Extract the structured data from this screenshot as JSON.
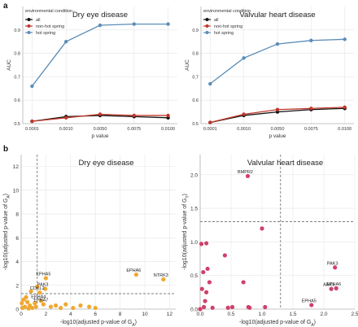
{
  "panels": {
    "a": "a",
    "b": "b"
  },
  "colors": {
    "all": "#111111",
    "non_hot_spring": "#c0392b",
    "hot_spring": "#5b8db8",
    "scatter_orange": "#f0a830",
    "scatter_pink": "#d0406a",
    "grid": "#e6e6e6",
    "dashed": "#555555"
  },
  "chart_data": [
    {
      "id": "a-dry",
      "type": "line",
      "title": "Dry eye disease",
      "xlabel": "p value",
      "ylabel": "AUC",
      "categories": [
        "0.0001",
        "0.0010",
        "0.0050",
        "0.0075",
        "0.0100"
      ],
      "ylim": [
        0.5,
        1.0
      ],
      "yticks": [
        "0.5",
        "0.6",
        "0.7",
        "0.8",
        "0.9"
      ],
      "yticks_num": [
        0.5,
        0.6,
        0.7,
        0.8,
        0.9
      ],
      "legend_title": "environmental condition",
      "legend_position": "top-left",
      "series": [
        {
          "name": "all",
          "color_key": "all",
          "values": [
            0.51,
            0.53,
            0.535,
            0.53,
            0.525
          ]
        },
        {
          "name": "non-hot spring",
          "color_key": "non_hot_spring",
          "values": [
            0.51,
            0.525,
            0.54,
            0.535,
            0.535
          ]
        },
        {
          "name": "hot spring",
          "color_key": "hot_spring",
          "values": [
            0.66,
            0.85,
            0.92,
            0.925,
            0.925
          ]
        }
      ]
    },
    {
      "id": "a-valv",
      "type": "line",
      "title": "Valvular heart disease",
      "xlabel": "p value",
      "ylabel": "AUC",
      "categories": [
        "0.0001",
        "0.0010",
        "0.0050",
        "0.0075",
        "0.0100"
      ],
      "ylim": [
        0.5,
        1.0
      ],
      "yticks": [
        "0.5",
        "0.6",
        "0.7",
        "0.8",
        "0.9"
      ],
      "yticks_num": [
        0.5,
        0.6,
        0.7,
        0.8,
        0.9
      ],
      "legend_title": "environmental condition",
      "legend_position": "top-left",
      "series": [
        {
          "name": "all",
          "color_key": "all",
          "values": [
            0.505,
            0.535,
            0.55,
            0.56,
            0.565
          ]
        },
        {
          "name": "non-hot spring",
          "color_key": "non_hot_spring",
          "values": [
            0.505,
            0.54,
            0.56,
            0.565,
            0.57
          ]
        },
        {
          "name": "hot spring",
          "color_key": "hot_spring",
          "values": [
            0.67,
            0.78,
            0.84,
            0.855,
            0.86
          ]
        }
      ]
    },
    {
      "id": "b-dry",
      "type": "scatter",
      "title": "Dry eye disease",
      "xlabel_parts": [
        "-log10(adjusted p-value of G",
        "A",
        ")"
      ],
      "ylabel_parts": [
        "-log10(adjusted p-value of G",
        "A",
        ")"
      ],
      "xlim": [
        0,
        12.5
      ],
      "ylim": [
        0,
        13
      ],
      "xticks": [
        "0",
        "2",
        "4",
        "6",
        "8",
        "10",
        "12"
      ],
      "xticks_num": [
        0,
        2,
        4,
        6,
        8,
        10,
        12
      ],
      "yticks": [
        "0",
        "2",
        "4",
        "6",
        "8",
        "10",
        "12"
      ],
      "yticks_num": [
        0,
        2,
        4,
        6,
        8,
        10,
        12
      ],
      "threshold_x": 1.3,
      "threshold_y": 1.3,
      "color_key": "scatter_orange",
      "points": [
        {
          "x": 2.0,
          "y": 2.6,
          "label": "EPHA5"
        },
        {
          "x": 1.95,
          "y": 1.7,
          "label": "PAK3"
        },
        {
          "x": 1.5,
          "y": 1.4,
          "label": "CDKL2"
        },
        {
          "x": 1.6,
          "y": 0.7,
          "label": "EPHA4"
        },
        {
          "x": 1.8,
          "y": 0.4,
          "label": "EPHA7"
        },
        {
          "x": 9.3,
          "y": 2.9,
          "label": "EPHA6"
        },
        {
          "x": 11.5,
          "y": 2.5,
          "label": "NTRK3"
        },
        {
          "x": 0.1,
          "y": 0.1,
          "label": ""
        },
        {
          "x": 0.3,
          "y": 0.2,
          "label": ""
        },
        {
          "x": 0.5,
          "y": 0.6,
          "label": ""
        },
        {
          "x": 0.7,
          "y": 0.3,
          "label": ""
        },
        {
          "x": 0.9,
          "y": 0.1,
          "label": ""
        },
        {
          "x": 1.1,
          "y": 0.5,
          "label": ""
        },
        {
          "x": 0.4,
          "y": 1.0,
          "label": ""
        },
        {
          "x": 0.2,
          "y": 0.8,
          "label": ""
        },
        {
          "x": 2.4,
          "y": 0.2,
          "label": ""
        },
        {
          "x": 2.8,
          "y": 0.3,
          "label": ""
        },
        {
          "x": 3.2,
          "y": 0.1,
          "label": ""
        },
        {
          "x": 3.6,
          "y": 0.4,
          "label": ""
        },
        {
          "x": 4.2,
          "y": 0.1,
          "label": ""
        },
        {
          "x": 4.8,
          "y": 0.3,
          "label": ""
        },
        {
          "x": 5.5,
          "y": 0.2,
          "label": ""
        },
        {
          "x": 6.0,
          "y": 0.1,
          "label": ""
        },
        {
          "x": 1.3,
          "y": 1.9,
          "label": ""
        },
        {
          "x": 0.8,
          "y": 1.5,
          "label": ""
        },
        {
          "x": 0.05,
          "y": 0.5,
          "label": ""
        },
        {
          "x": 1.2,
          "y": 0.2,
          "label": ""
        },
        {
          "x": 0.6,
          "y": 0.05,
          "label": ""
        }
      ]
    },
    {
      "id": "b-valv",
      "type": "scatter",
      "title": "Valvular heart disease",
      "xlabel_parts": [
        "-log10(adjusted p-value of G",
        "A",
        ")"
      ],
      "ylabel_parts": [
        "-log10(adjusted p-value of G",
        "T",
        ")"
      ],
      "xlim": [
        0,
        2.5
      ],
      "ylim": [
        0,
        2.3
      ],
      "xticks": [
        "0.0",
        "0.5",
        "1.0",
        "1.5",
        "2.0",
        "2.5"
      ],
      "xticks_num": [
        0.0,
        0.5,
        1.0,
        1.5,
        2.0,
        2.5
      ],
      "yticks": [
        "0.0",
        "0.5",
        "1.0",
        "1.5",
        "2.0"
      ],
      "yticks_num": [
        0.0,
        0.5,
        1.0,
        1.5,
        2.0
      ],
      "threshold_x": 1.3,
      "threshold_y": 1.3,
      "color_key": "scatter_pink",
      "points": [
        {
          "x": 0.77,
          "y": 1.98,
          "label": "BMPR2"
        },
        {
          "x": 2.18,
          "y": 0.62,
          "label": "PAK3"
        },
        {
          "x": 2.2,
          "y": 0.31,
          "label": "EPHA6"
        },
        {
          "x": 2.12,
          "y": 0.3,
          "label": "AAK1"
        },
        {
          "x": 1.8,
          "y": 0.06,
          "label": "EPHA5"
        },
        {
          "x": 0.0,
          "y": 0.0,
          "label": ""
        },
        {
          "x": 0.02,
          "y": 0.97,
          "label": ""
        },
        {
          "x": 0.1,
          "y": 0.98,
          "label": ""
        },
        {
          "x": 0.05,
          "y": 0.55,
          "label": ""
        },
        {
          "x": 0.12,
          "y": 0.6,
          "label": ""
        },
        {
          "x": 0.1,
          "y": 0.25,
          "label": ""
        },
        {
          "x": 0.2,
          "y": 0.02,
          "label": ""
        },
        {
          "x": 0.06,
          "y": 0.03,
          "label": ""
        },
        {
          "x": 0.08,
          "y": 0.12,
          "label": ""
        },
        {
          "x": 0.4,
          "y": 0.8,
          "label": ""
        },
        {
          "x": 0.45,
          "y": 0.02,
          "label": ""
        },
        {
          "x": 0.52,
          "y": 0.03,
          "label": ""
        },
        {
          "x": 0.7,
          "y": 0.4,
          "label": ""
        },
        {
          "x": 0.78,
          "y": 0.03,
          "label": ""
        },
        {
          "x": 0.8,
          "y": 0.02,
          "label": ""
        },
        {
          "x": 1.0,
          "y": 1.2,
          "label": ""
        },
        {
          "x": 1.05,
          "y": 0.03,
          "label": ""
        },
        {
          "x": 0.15,
          "y": 0.4,
          "label": ""
        },
        {
          "x": 0.03,
          "y": 0.3,
          "label": ""
        }
      ]
    }
  ]
}
